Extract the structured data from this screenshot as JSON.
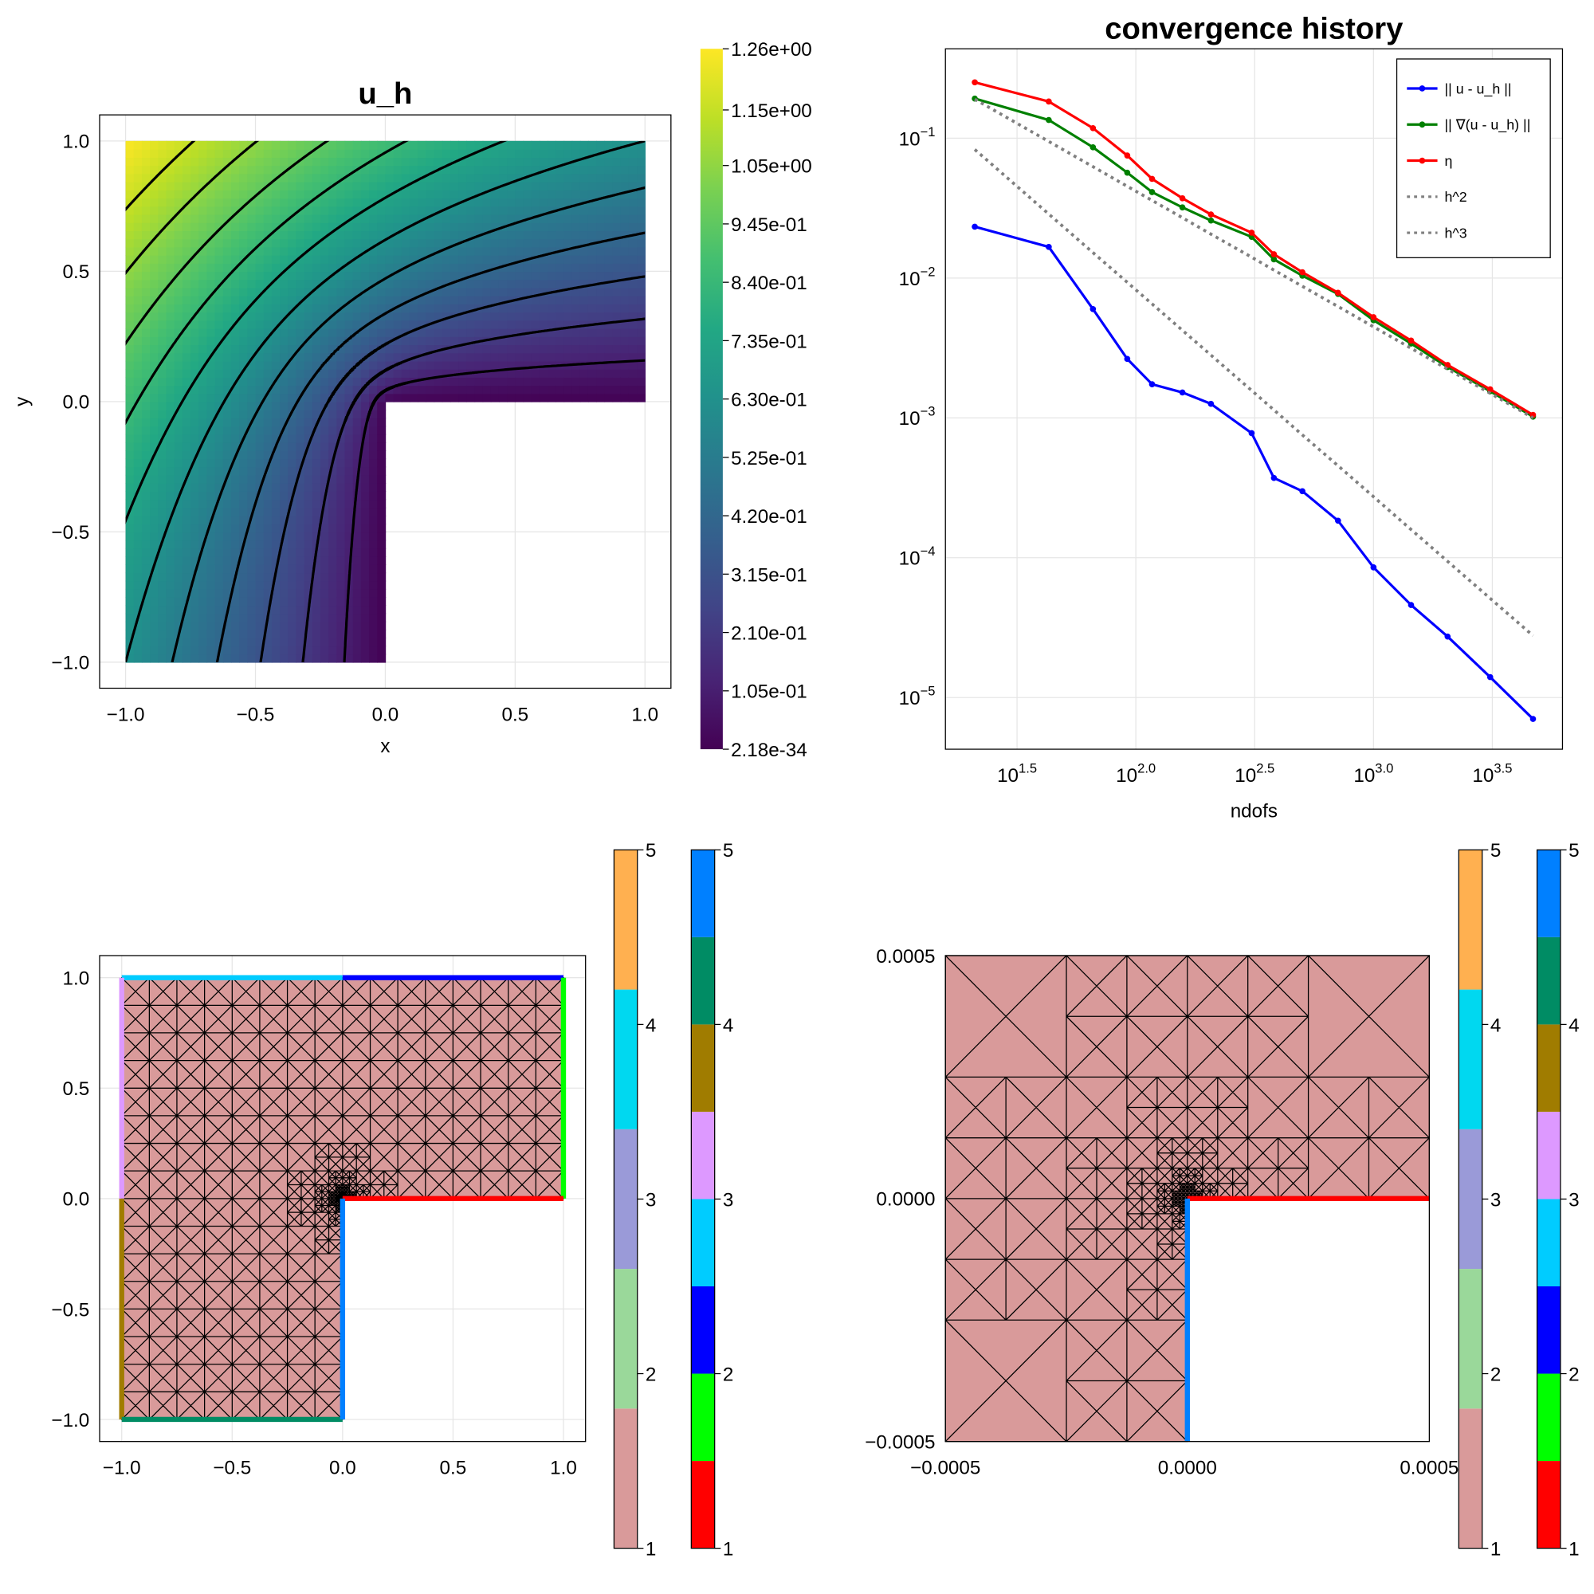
{
  "chart_data": [
    {
      "type": "heatmap",
      "title": "u_h",
      "x_label": "x",
      "y_label": "y",
      "xlim": [
        -1.1,
        1.1
      ],
      "ylim": [
        -1.1,
        1.1
      ],
      "xticks": [
        {
          "value": -1,
          "label": "−1.0"
        },
        {
          "value": -0.5,
          "label": "−0.5"
        },
        {
          "value": 0,
          "label": "0.0"
        },
        {
          "value": 0.5,
          "label": "0.5"
        },
        {
          "value": 1,
          "label": "1.0"
        }
      ],
      "yticks": [
        {
          "value": -1,
          "label": "−1.0"
        },
        {
          "value": -0.5,
          "label": "−0.5"
        },
        {
          "value": 0,
          "label": "0.0"
        },
        {
          "value": 0.5,
          "label": "0.5"
        },
        {
          "value": 1,
          "label": "1.0"
        }
      ],
      "grid": true,
      "colormap": "viridis",
      "contours": true,
      "colorbar": {
        "lim": [
          2.18e-34,
          1.26
        ],
        "ticks": [
          {
            "value": 1.26,
            "label": "1.26e+00"
          },
          {
            "value": 1.15,
            "label": "1.15e+00"
          },
          {
            "value": 1.05,
            "label": "1.05e+00"
          },
          {
            "value": 0.945,
            "label": "9.45e-01"
          },
          {
            "value": 0.84,
            "label": "8.40e-01"
          },
          {
            "value": 0.735,
            "label": "7.35e-01"
          },
          {
            "value": 0.63,
            "label": "6.30e-01"
          },
          {
            "value": 0.525,
            "label": "5.25e-01"
          },
          {
            "value": 0.42,
            "label": "4.20e-01"
          },
          {
            "value": 0.315,
            "label": "3.15e-01"
          },
          {
            "value": 0.21,
            "label": "2.10e-01"
          },
          {
            "value": 0.105,
            "label": "1.05e-01"
          },
          {
            "value": 2.18e-34,
            "label": "2.18e-34"
          }
        ]
      }
    },
    {
      "type": "line",
      "title": "convergence history",
      "x_label": "ndofs",
      "log_x": true,
      "log_y": true,
      "grid": true,
      "legend": "top-right",
      "x": [
        21,
        43,
        66,
        92,
        117,
        157,
        207,
        307,
        381,
        502,
        709,
        1000,
        1439,
        2050,
        3097,
        4690
      ],
      "series": [
        {
          "name": "|| u - u_h ||",
          "color": "#0000ff",
          "line_style": "solid",
          "markers": true,
          "values": [
            0.0233,
            0.0167,
            0.006,
            0.00264,
            0.00174,
            0.00152,
            0.00126,
            0.000778,
            0.000372,
            0.000299,
            0.000184,
            8.53e-05,
            4.59e-05,
            2.73e-05,
            1.4e-05,
            7.03e-06
          ]
        },
        {
          "name": "|| ∇(u - u_h) ||",
          "color": "#008000",
          "line_style": "solid",
          "markers": true,
          "values": [
            0.192,
            0.135,
            0.0861,
            0.0567,
            0.0412,
            0.032,
            0.0258,
            0.0197,
            0.0136,
            0.0104,
            0.0077,
            0.00499,
            0.0034,
            0.00231,
            0.00155,
            0.00102
          ]
        },
        {
          "name": "η",
          "color": "#ff0000",
          "line_style": "solid",
          "markers": true,
          "values": [
            0.251,
            0.183,
            0.118,
            0.0752,
            0.0512,
            0.0372,
            0.0285,
            0.0211,
            0.0148,
            0.011,
            0.00785,
            0.00525,
            0.00357,
            0.00239,
            0.0016,
            0.00105
          ]
        },
        {
          "name": "h^2",
          "color": "#808080",
          "line_style": "dotted",
          "markers": false,
          "values": [
            0.19,
            0.0948,
            0.0626,
            0.0453,
            0.0359,
            0.027,
            0.0206,
            0.0141,
            0.0114,
            0.00873,
            0.00626,
            0.00448,
            0.00315,
            0.00223,
            0.0015,
            0.001
          ]
        },
        {
          "name": "h^3",
          "color": "#808080",
          "line_style": "dotted",
          "markers": false,
          "values": [
            0.083,
            0.0287,
            0.0152,
            0.00932,
            0.00653,
            0.00423,
            0.00281,
            0.00157,
            0.00114,
            0.000755,
            0.000455,
            0.000273,
            0.000159,
            9.42e-05,
            5.12e-05,
            2.77e-05
          ]
        }
      ],
      "xlim": [
        15.8,
        6240
      ],
      "ylim": [
        4.27e-06,
        0.436
      ],
      "xticks": [
        {
          "value": 31.6228,
          "label": "10^1.5"
        },
        {
          "value": 100,
          "label": "10^2.0"
        },
        {
          "value": 316.228,
          "label": "10^2.5"
        },
        {
          "value": 1000,
          "label": "10^3.0"
        },
        {
          "value": 3162.28,
          "label": "10^3.5"
        }
      ],
      "yticks": [
        {
          "value": 0.1,
          "label": "10^−1"
        },
        {
          "value": 0.01,
          "label": "10^−2"
        },
        {
          "value": 0.001,
          "label": "10^−3"
        },
        {
          "value": 0.0001,
          "label": "10^−4"
        },
        {
          "value": 1e-05,
          "label": "10^−5"
        }
      ]
    },
    {
      "type": "mesh",
      "grid": true,
      "xlim": [
        -1.1,
        1.1
      ],
      "ylim": [
        -1.1,
        1.1
      ],
      "xticks": [
        {
          "value": -1,
          "label": "−1.0"
        },
        {
          "value": -0.5,
          "label": "−0.5"
        },
        {
          "value": 0,
          "label": "0.0"
        },
        {
          "value": 0.5,
          "label": "0.5"
        },
        {
          "value": 1,
          "label": "1.0"
        }
      ],
      "yticks": [
        {
          "value": -1,
          "label": "−1.0"
        },
        {
          "value": -0.5,
          "label": "−0.5"
        },
        {
          "value": 0,
          "label": "0.0"
        },
        {
          "value": 0.5,
          "label": "0.5"
        },
        {
          "value": 1,
          "label": "1.0"
        }
      ],
      "colorbars": [
        {
          "lim": [
            1,
            5
          ],
          "ticks": [
            1,
            2,
            3,
            4,
            5
          ],
          "colors": [
            "#d99a9a",
            "#9ad89a",
            "#9a9ad8",
            "#00d8f0",
            "#ffb050"
          ]
        },
        {
          "lim": [
            1,
            5
          ],
          "ticks": [
            1,
            2,
            3,
            4,
            5
          ],
          "colors": [
            "#ff0000",
            "#00ff00",
            "#0000ff",
            "#00ccff",
            "#dd99ff",
            "#a07c00",
            "#008c64",
            "#0080ff"
          ]
        }
      ]
    },
    {
      "type": "mesh",
      "grid": true,
      "xlim": [
        -0.0005,
        0.0005
      ],
      "ylim": [
        -0.0005,
        0.0005
      ],
      "xticks": [
        {
          "value": -0.0005,
          "label": "−0.0005"
        },
        {
          "value": 0,
          "label": "0.0000"
        },
        {
          "value": 0.0005,
          "label": "0.0005"
        }
      ],
      "yticks": [
        {
          "value": -0.0005,
          "label": "−0.0005"
        },
        {
          "value": 0,
          "label": "0.0000"
        },
        {
          "value": 0.0005,
          "label": "0.0005"
        }
      ],
      "colorbars": [
        {
          "lim": [
            1,
            5
          ],
          "ticks": [
            1,
            2,
            3,
            4,
            5
          ],
          "colors": [
            "#d99a9a",
            "#9ad89a",
            "#9a9ad8",
            "#00d8f0",
            "#ffb050"
          ]
        },
        {
          "lim": [
            1,
            5
          ],
          "ticks": [
            1,
            2,
            3,
            4,
            5
          ],
          "colors": [
            "#ff0000",
            "#00ff00",
            "#0000ff",
            "#00ccff",
            "#dd99ff",
            "#a07c00",
            "#008c64",
            "#0080ff"
          ]
        }
      ]
    }
  ]
}
